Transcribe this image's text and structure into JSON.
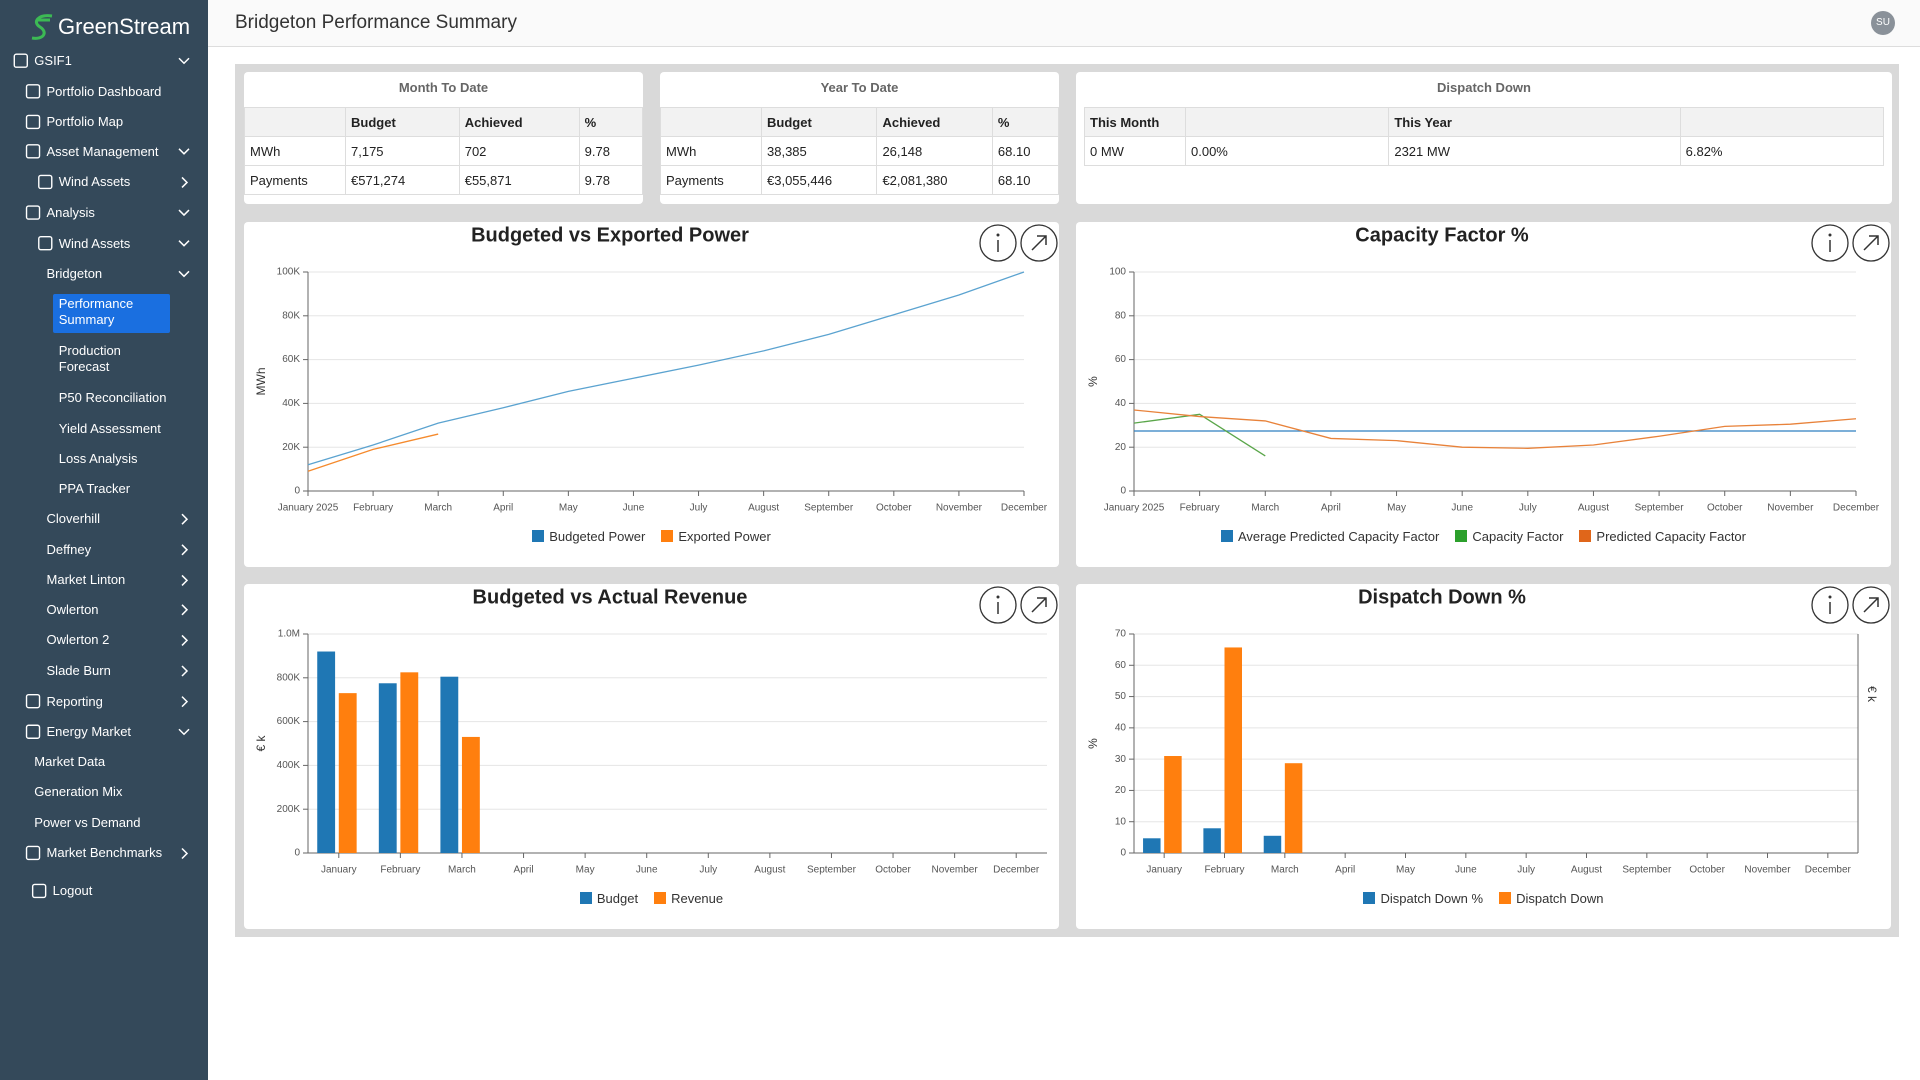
{
  "sidebar": {
    "logo": "GreenStream",
    "items": [
      "GSIF1",
      "Portfolio Dashboard",
      "Portfolio Map",
      "Asset Management",
      "Wind Assets",
      "Analysis",
      "Wind Assets",
      "Bridgeton",
      "Performance Summary",
      "Production Forecast",
      "P50 Reconciliation",
      "Yield Assessment",
      "Loss Analysis",
      "PPA Tracker",
      "Cloverhill",
      "Deffney",
      "Market Linton",
      "Owlerton",
      "Owlerton 2",
      "Slade Burn",
      "Reporting",
      "Energy Market",
      "Market Data",
      "Generation Mix",
      "Power vs Demand",
      "Market Benchmarks",
      "Logout"
    ]
  },
  "header": {
    "title": "Bridgeton Performance Summary",
    "avatar": "SU"
  },
  "tables": [
    {
      "title": "Month To Date",
      "columns": [
        "Budget",
        "Achieved",
        "%"
      ],
      "rows": [
        [
          "MWh",
          "7,175",
          "702",
          "9.78"
        ],
        [
          "Payments",
          "€571,274",
          "€55,871",
          "9.78"
        ]
      ]
    },
    {
      "title": "Year To Date",
      "columns": [
        "Budget",
        "Achieved",
        "%"
      ],
      "rows": [
        [
          "MWh",
          "38,385",
          "26,148",
          "68.10"
        ],
        [
          "Payments",
          "€3,055,446",
          "€2,081,380",
          "68.10"
        ]
      ]
    },
    {
      "title": "Dispatch Down",
      "columns": [
        "This Month",
        "This Year"
      ],
      "rows": [
        [
          "0 MW",
          "0.00%",
          "2321 MW",
          "6.82%"
        ]
      ]
    }
  ],
  "chart_data": [
    {
      "type": "line",
      "title": "Budgeted vs Exported Power",
      "y_label": "MWh",
      "categories": [
        "January 2025",
        "February",
        "March",
        "April",
        "May",
        "June",
        "July",
        "August",
        "September",
        "October",
        "November",
        "December"
      ],
      "series": [
        {
          "name": "Budgeted Power",
          "color": "#5ba3d0",
          "legend_color": "#1f77b4",
          "values": [
            12000,
            21000,
            31000,
            38000,
            45500,
            51500,
            57500,
            64000,
            71500,
            80500,
            89500,
            100000
          ]
        },
        {
          "name": "Exported Power",
          "color": "#f58a2d",
          "legend_color": "#ff7f0e",
          "values": [
            9000,
            19000,
            26000,
            null,
            null,
            null,
            null,
            null,
            null,
            null,
            null,
            null
          ]
        }
      ],
      "ylim": [
        0,
        100000
      ],
      "yticks": [
        0,
        {
          "value": 20000,
          "label": "20K"
        },
        {
          "value": 40000,
          "label": "40K"
        },
        {
          "value": 60000,
          "label": "60K"
        },
        {
          "value": 80000,
          "label": "80K"
        },
        {
          "value": 100000,
          "label": "100K"
        }
      ],
      "grid": true
    },
    {
      "type": "line",
      "title": "Capacity Factor %",
      "y_label": "%",
      "categories": [
        "January 2025",
        "February",
        "March",
        "April",
        "May",
        "June",
        "July",
        "August",
        "September",
        "October",
        "November",
        "December"
      ],
      "series": [
        {
          "name": "Average Predicted Capacity Factor",
          "color": "#2f7fc0",
          "legend_color": "#1f77b4",
          "values": [
            27.4,
            27.4,
            27.4,
            27.4,
            27.4,
            27.4,
            27.4,
            27.4,
            27.4,
            27.4,
            27.4,
            27.4
          ]
        },
        {
          "name": "Capacity Factor",
          "color": "#5aa64a",
          "legend_color": "#2ca02c",
          "values": [
            31,
            35,
            16,
            null,
            null,
            null,
            null,
            null,
            null,
            null,
            null,
            null
          ]
        },
        {
          "name": "Predicted Capacity Factor",
          "color": "#e8823a",
          "legend_color": "#e0661a",
          "values": [
            37,
            34,
            32,
            24,
            23,
            20,
            19.5,
            21,
            25,
            29.5,
            30.5,
            33
          ]
        }
      ],
      "ylim": [
        0,
        100
      ],
      "yticks": [
        0,
        20,
        40,
        60,
        80,
        100
      ],
      "grid": true
    },
    {
      "type": "bar",
      "title": "Budgeted vs Actual Revenue",
      "y_label": "€ k",
      "categories": [
        "January",
        "February",
        "March",
        "April",
        "May",
        "June",
        "July",
        "August",
        "September",
        "October",
        "November",
        "December"
      ],
      "series": [
        {
          "name": "Budget",
          "color": "#1f77b4",
          "values": [
            920000,
            775000,
            805000,
            null,
            null,
            null,
            null,
            null,
            null,
            null,
            null,
            null
          ]
        },
        {
          "name": "Revenue",
          "color": "#ff7f0e",
          "values": [
            730000,
            825000,
            530000,
            null,
            null,
            null,
            null,
            null,
            null,
            null,
            null,
            null
          ]
        }
      ],
      "ylim": [
        0,
        1000000
      ],
      "yticks": [
        0,
        {
          "value": 200000,
          "label": "200K"
        },
        {
          "value": 400000,
          "label": "400K"
        },
        {
          "value": 600000,
          "label": "600K"
        },
        {
          "value": 800000,
          "label": "800K"
        },
        {
          "value": 1000000,
          "label": "1.0M"
        }
      ],
      "grid": true
    },
    {
      "type": "bar",
      "title": "Dispatch Down %",
      "y_label": "%",
      "y2_label": "€ k",
      "categories": [
        "January",
        "February",
        "March",
        "April",
        "May",
        "June",
        "July",
        "August",
        "September",
        "October",
        "November",
        "December"
      ],
      "series": [
        {
          "name": "Dispatch Down %",
          "color": "#1f77b4",
          "values": [
            4.7,
            7.9,
            5.5,
            null,
            null,
            null,
            null,
            null,
            null,
            null,
            null,
            null
          ]
        },
        {
          "name": "Dispatch Down",
          "color": "#ff7f0e",
          "values": [
            31,
            65.7,
            28.7,
            null,
            null,
            null,
            null,
            null,
            null,
            null,
            null,
            null
          ]
        }
      ],
      "ylim": [
        0,
        70
      ],
      "yticks": [
        0,
        10,
        20,
        30,
        40,
        50,
        60,
        70
      ],
      "grid": true
    }
  ]
}
